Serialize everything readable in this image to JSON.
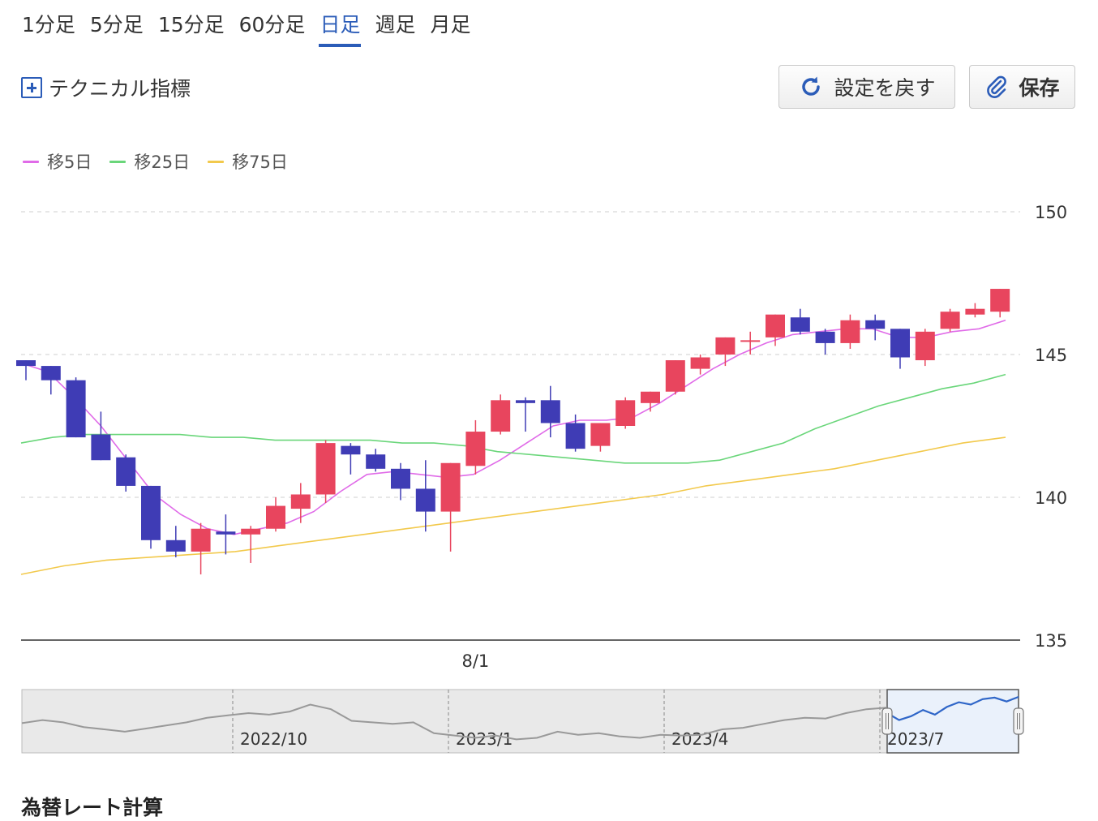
{
  "tabs": [
    {
      "label": "1分足",
      "active": false
    },
    {
      "label": "5分足",
      "active": false
    },
    {
      "label": "15分足",
      "active": false
    },
    {
      "label": "60分足",
      "active": false
    },
    {
      "label": "日足",
      "active": true
    },
    {
      "label": "週足",
      "active": false
    },
    {
      "label": "月足",
      "active": false
    }
  ],
  "toolbar": {
    "technical_label": "テクニカル指標",
    "reset_label": "設定を戻す",
    "save_label": "保存"
  },
  "legend": [
    {
      "label": "移5日",
      "color": "#e06be8"
    },
    {
      "label": "移25日",
      "color": "#6ad67a"
    },
    {
      "label": "移75日",
      "color": "#f2c94c"
    }
  ],
  "colors": {
    "up": "#e8455e",
    "down": "#3f3cb5",
    "accent": "#2b5cb8",
    "nav_line": "#999999",
    "nav_selected_line": "#2f66c8"
  },
  "chart_data": {
    "type": "candlestick",
    "y_ticks": [
      150,
      145,
      140,
      135
    ],
    "ylim": [
      135,
      150
    ],
    "x_labels": [
      {
        "label": "8/1",
        "index": 18
      }
    ],
    "candles": [
      {
        "o": 144.8,
        "h": 144.8,
        "l": 144.1,
        "c": 144.6
      },
      {
        "o": 144.6,
        "h": 144.6,
        "l": 143.6,
        "c": 144.1
      },
      {
        "o": 144.1,
        "h": 144.2,
        "l": 142.1,
        "c": 142.1
      },
      {
        "o": 142.2,
        "h": 143.0,
        "l": 141.3,
        "c": 141.3
      },
      {
        "o": 141.4,
        "h": 141.5,
        "l": 140.2,
        "c": 140.4
      },
      {
        "o": 140.4,
        "h": 140.4,
        "l": 138.2,
        "c": 138.5
      },
      {
        "o": 138.5,
        "h": 139.0,
        "l": 137.9,
        "c": 138.1
      },
      {
        "o": 138.1,
        "h": 139.1,
        "l": 137.3,
        "c": 138.9
      },
      {
        "o": 138.8,
        "h": 139.4,
        "l": 138.0,
        "c": 138.7
      },
      {
        "o": 138.7,
        "h": 139.0,
        "l": 137.7,
        "c": 138.9
      },
      {
        "o": 138.9,
        "h": 140.0,
        "l": 138.8,
        "c": 139.7
      },
      {
        "o": 139.6,
        "h": 140.5,
        "l": 139.1,
        "c": 140.1
      },
      {
        "o": 140.1,
        "h": 142.0,
        "l": 139.8,
        "c": 141.9
      },
      {
        "o": 141.8,
        "h": 141.9,
        "l": 140.8,
        "c": 141.5
      },
      {
        "o": 141.5,
        "h": 141.7,
        "l": 140.9,
        "c": 141.0
      },
      {
        "o": 141.0,
        "h": 141.2,
        "l": 139.9,
        "c": 140.3
      },
      {
        "o": 140.3,
        "h": 141.3,
        "l": 138.8,
        "c": 139.5
      },
      {
        "o": 139.5,
        "h": 141.2,
        "l": 138.1,
        "c": 141.2
      },
      {
        "o": 141.1,
        "h": 142.7,
        "l": 140.8,
        "c": 142.3
      },
      {
        "o": 142.3,
        "h": 143.6,
        "l": 142.2,
        "c": 143.4
      },
      {
        "o": 143.4,
        "h": 143.5,
        "l": 142.3,
        "c": 143.3
      },
      {
        "o": 143.4,
        "h": 143.9,
        "l": 142.1,
        "c": 142.6
      },
      {
        "o": 142.6,
        "h": 142.9,
        "l": 141.6,
        "c": 141.7
      },
      {
        "o": 141.8,
        "h": 142.6,
        "l": 141.6,
        "c": 142.6
      },
      {
        "o": 142.5,
        "h": 143.5,
        "l": 142.4,
        "c": 143.4
      },
      {
        "o": 143.3,
        "h": 143.7,
        "l": 143.0,
        "c": 143.7
      },
      {
        "o": 143.7,
        "h": 144.8,
        "l": 143.6,
        "c": 144.8
      },
      {
        "o": 144.5,
        "h": 145.0,
        "l": 144.3,
        "c": 144.9
      },
      {
        "o": 145.0,
        "h": 145.6,
        "l": 144.6,
        "c": 145.6
      },
      {
        "o": 145.5,
        "h": 145.8,
        "l": 145.0,
        "c": 145.5
      },
      {
        "o": 145.6,
        "h": 146.4,
        "l": 145.3,
        "c": 146.4
      },
      {
        "o": 146.3,
        "h": 146.6,
        "l": 145.7,
        "c": 145.8
      },
      {
        "o": 145.8,
        "h": 145.9,
        "l": 145.0,
        "c": 145.4
      },
      {
        "o": 145.4,
        "h": 146.4,
        "l": 145.2,
        "c": 146.2
      },
      {
        "o": 146.2,
        "h": 146.4,
        "l": 145.5,
        "c": 145.9
      },
      {
        "o": 145.9,
        "h": 145.9,
        "l": 144.5,
        "c": 144.9
      },
      {
        "o": 144.8,
        "h": 145.9,
        "l": 144.6,
        "c": 145.8
      },
      {
        "o": 145.9,
        "h": 146.6,
        "l": 145.8,
        "c": 146.5
      },
      {
        "o": 146.4,
        "h": 146.8,
        "l": 146.3,
        "c": 146.6
      },
      {
        "o": 146.5,
        "h": 147.3,
        "l": 146.3,
        "c": 147.3
      }
    ],
    "series": [
      {
        "name": "移5日",
        "values": [
          144.7,
          144.4,
          143.5,
          142.5,
          141.3,
          140.1,
          139.4,
          138.9,
          138.7,
          138.9,
          139.1,
          139.5,
          140.2,
          140.8,
          140.9,
          140.8,
          140.7,
          140.8,
          141.3,
          141.9,
          142.5,
          142.7,
          142.7,
          142.8,
          143.3,
          143.9,
          144.5,
          145.0,
          145.4,
          145.7,
          145.8,
          145.9,
          145.9,
          145.6,
          145.6,
          145.8,
          145.9,
          146.2
        ]
      },
      {
        "name": "移25日",
        "values": [
          141.9,
          142.1,
          142.2,
          142.2,
          142.2,
          142.2,
          142.1,
          142.1,
          142.0,
          142.0,
          142.0,
          142.0,
          141.9,
          141.9,
          141.8,
          141.6,
          141.5,
          141.4,
          141.3,
          141.2,
          141.2,
          141.2,
          141.3,
          141.6,
          141.9,
          142.4,
          142.8,
          143.2,
          143.5,
          143.8,
          144.0,
          144.3
        ]
      },
      {
        "name": "移75日",
        "values": [
          137.3,
          137.6,
          137.8,
          137.9,
          138.0,
          138.1,
          138.3,
          138.5,
          138.7,
          138.9,
          139.1,
          139.3,
          139.5,
          139.7,
          139.9,
          140.1,
          140.4,
          140.6,
          140.8,
          141.0,
          141.3,
          141.6,
          141.9,
          142.1
        ]
      }
    ]
  },
  "navigator": {
    "labels": [
      "2022/10",
      "2023/1",
      "2023/4",
      "2023/7"
    ],
    "values": [
      139.5,
      139.9,
      139.6,
      139.0,
      138.7,
      138.4,
      138.8,
      139.2,
      139.6,
      140.2,
      140.5,
      140.8,
      140.6,
      141.0,
      141.9,
      141.3,
      139.8,
      139.6,
      139.4,
      139.6,
      138.2,
      137.9,
      137.6,
      137.9,
      137.4,
      137.6,
      138.4,
      138.0,
      138.2,
      137.8,
      137.6,
      138.0,
      137.9,
      138.0,
      138.7,
      138.9,
      139.4,
      139.9,
      140.2,
      140.1,
      140.8,
      141.3,
      141.5
    ],
    "selected_values": [
      140.8,
      139.9,
      140.4,
      141.2,
      140.6,
      141.6,
      142.2,
      141.9,
      142.6,
      142.8,
      142.3,
      142.9
    ]
  },
  "bottom_title": "為替レート計算"
}
